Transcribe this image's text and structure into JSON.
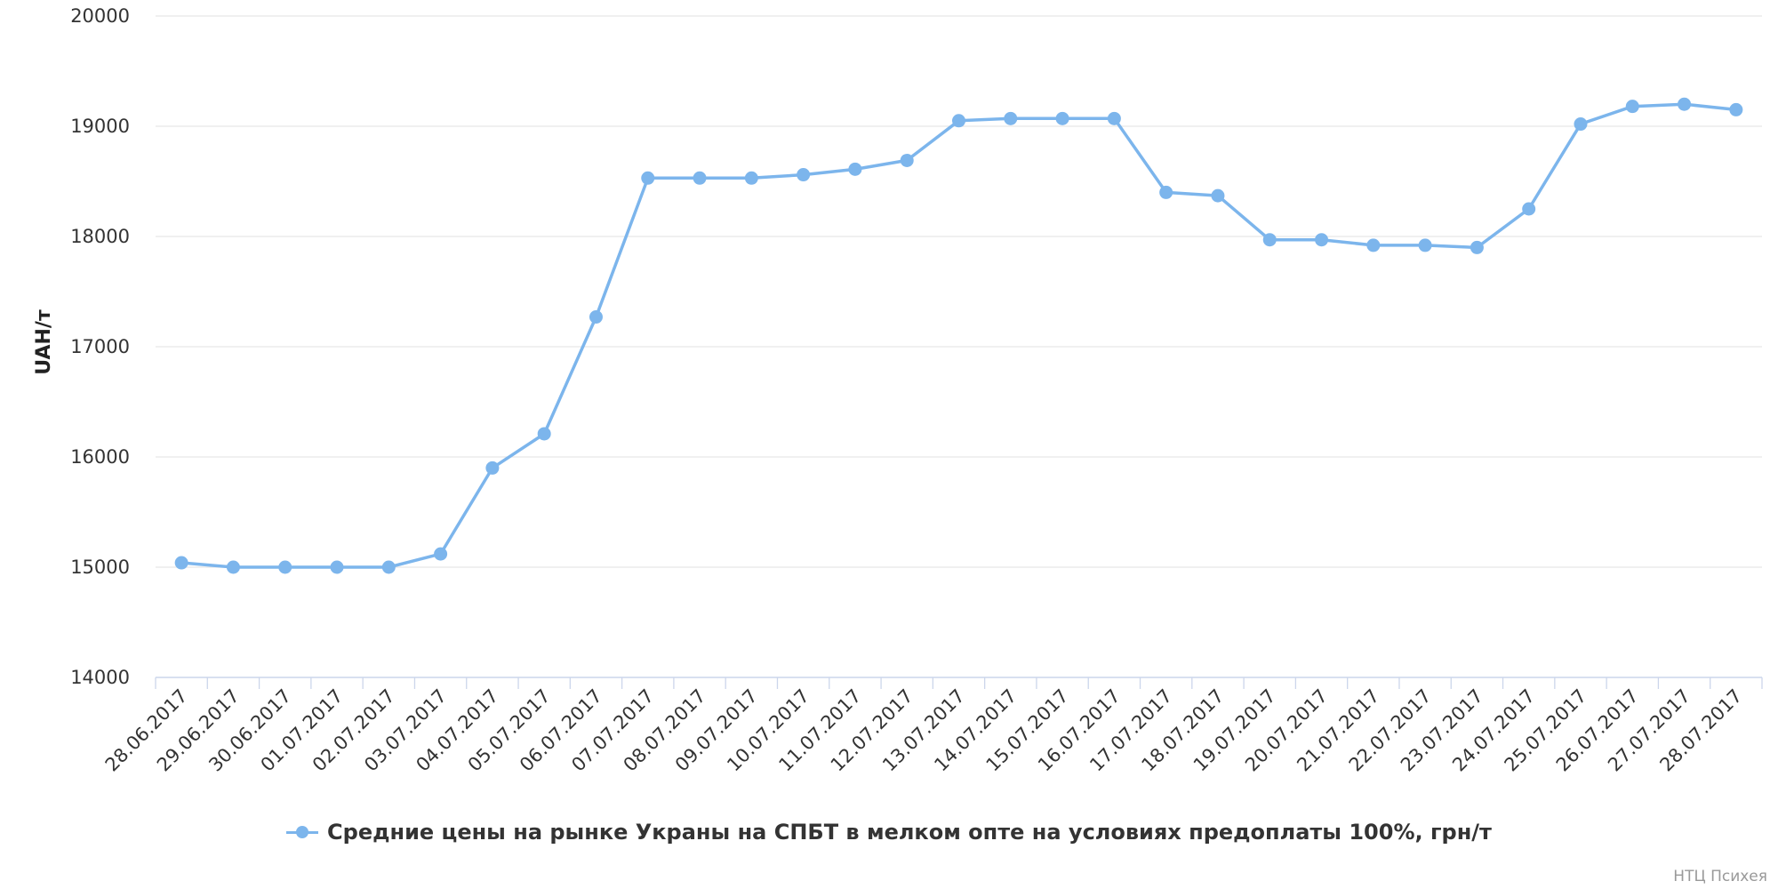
{
  "chart_data": {
    "type": "line",
    "title": "",
    "xlabel": "",
    "ylabel": "UAH/т",
    "ylim": [
      14000,
      20000
    ],
    "yticks": [
      "14000",
      "15000",
      "16000",
      "17000",
      "18000",
      "19000",
      "20000"
    ],
    "grid": true,
    "legend_position": "bottom-center",
    "categories": [
      "28.06.2017",
      "29.06.2017",
      "30.06.2017",
      "01.07.2017",
      "02.07.2017",
      "03.07.2017",
      "04.07.2017",
      "05.07.2017",
      "06.07.2017",
      "07.07.2017",
      "08.07.2017",
      "09.07.2017",
      "10.07.2017",
      "11.07.2017",
      "12.07.2017",
      "13.07.2017",
      "14.07.2017",
      "15.07.2017",
      "16.07.2017",
      "17.07.2017",
      "18.07.2017",
      "19.07.2017",
      "20.07.2017",
      "21.07.2017",
      "22.07.2017",
      "23.07.2017",
      "24.07.2017",
      "25.07.2017",
      "26.07.2017",
      "27.07.2017",
      "28.07.2017"
    ],
    "series": [
      {
        "name": "Средние цены на рынке Украны на СПБТ в мелком опте на условиях предоплаты 100%, грн/т",
        "color": "#7cb5ec",
        "values": [
          15040,
          15000,
          15000,
          15000,
          15000,
          15120,
          15900,
          16210,
          17270,
          18530,
          18530,
          18530,
          18560,
          18610,
          18690,
          19050,
          19070,
          19070,
          19070,
          18400,
          18370,
          17970,
          17970,
          17920,
          17920,
          17900,
          18250,
          19020,
          19180,
          19200,
          19150
        ]
      }
    ]
  },
  "credits": "НТЦ Психея"
}
